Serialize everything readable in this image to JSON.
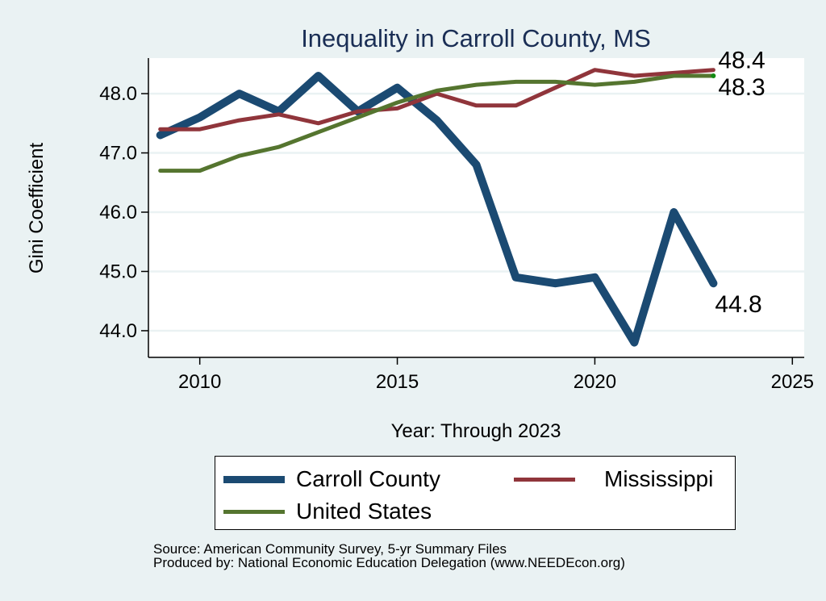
{
  "chart_data": {
    "type": "line",
    "title": "Inequality in Carroll County, MS",
    "xlabel": "Year: Through 2023",
    "ylabel": "Gini Coefficient",
    "x": [
      2009,
      2010,
      2011,
      2012,
      2013,
      2014,
      2015,
      2016,
      2017,
      2018,
      2019,
      2020,
      2021,
      2022,
      2023
    ],
    "xlim": [
      2008.7,
      2025.3
    ],
    "ylim": [
      43.55,
      48.6
    ],
    "xticks": [
      2010,
      2015,
      2020,
      2025
    ],
    "xtick_labels": [
      "2010",
      "2015",
      "2020",
      "2025"
    ],
    "yticks": [
      44,
      45,
      46,
      47,
      48
    ],
    "ytick_labels": [
      "44.0",
      "45.0",
      "46.0",
      "47.0",
      "48.0"
    ],
    "grid": true,
    "legend_position": "bottom",
    "series": [
      {
        "name": "Carroll County",
        "color": "#1b4a72",
        "values": [
          47.3,
          47.6,
          48.0,
          47.7,
          48.3,
          47.7,
          48.1,
          47.55,
          46.8,
          44.9,
          44.8,
          44.9,
          43.8,
          46.0,
          44.8
        ],
        "end_label": "44.8"
      },
      {
        "name": "Mississippi",
        "color": "#90353b",
        "values": [
          47.4,
          47.4,
          47.55,
          47.65,
          47.5,
          47.7,
          47.75,
          48.0,
          47.8,
          47.8,
          48.1,
          48.4,
          48.3,
          48.35,
          48.4
        ],
        "end_label": "48.4"
      },
      {
        "name": "United States",
        "color": "#55752f",
        "values": [
          46.7,
          46.7,
          46.95,
          47.1,
          47.35,
          47.6,
          47.85,
          48.05,
          48.15,
          48.2,
          48.2,
          48.15,
          48.2,
          48.3,
          48.3
        ],
        "end_label": "48.3"
      }
    ]
  },
  "notes": {
    "source": "Source: American Community Survey, 5-yr Summary Files",
    "produced_by": "Produced by: National Economic Education Delegation (www.NEEDEcon.org)"
  }
}
